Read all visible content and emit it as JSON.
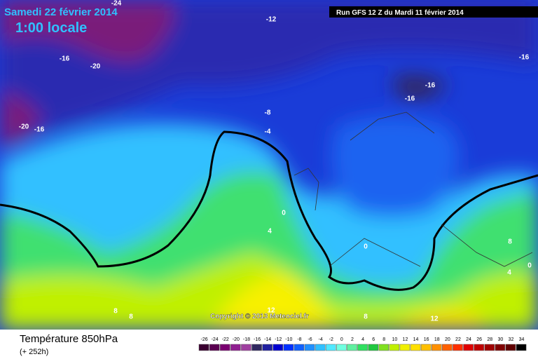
{
  "header": {
    "title": "Samedi 22 février 2014",
    "subtitle": "1:00 locale",
    "run": "Run GFS 12 Z du Mardi 11 février 2014"
  },
  "map": {
    "contour_labels": [
      -24,
      -12,
      -16,
      -20,
      -20,
      -16,
      -16,
      -16,
      -16,
      -8,
      -4,
      0,
      4,
      0,
      8,
      0,
      4,
      8,
      8,
      12,
      8,
      12
    ],
    "copyright": "Copyright © 2013 Meteociel.fr"
  },
  "footer": {
    "parameter": "Température 850hPa",
    "lead": "(+ 252h)"
  },
  "legend": {
    "ticks": [
      -26,
      -24,
      -22,
      -20,
      -18,
      -16,
      -14,
      -12,
      -10,
      -8,
      -6,
      -4,
      -2,
      0,
      2,
      4,
      6,
      8,
      10,
      12,
      14,
      16,
      18,
      20,
      22,
      24,
      26,
      28,
      30,
      32,
      34
    ],
    "colors": [
      "#3a0030",
      "#5a0050",
      "#7a0070",
      "#902090",
      "#a040a0",
      "#302860",
      "#2020a0",
      "#0000d0",
      "#0030ff",
      "#1060ff",
      "#2090ff",
      "#30c0ff",
      "#50e8ff",
      "#70ffe0",
      "#60f0a0",
      "#30e060",
      "#20c840",
      "#80e020",
      "#c0f000",
      "#f0f000",
      "#ffe000",
      "#ffc000",
      "#ff9000",
      "#ff6000",
      "#ff3000",
      "#e00000",
      "#c00000",
      "#a00000",
      "#800000",
      "#600000",
      "#000000"
    ]
  }
}
